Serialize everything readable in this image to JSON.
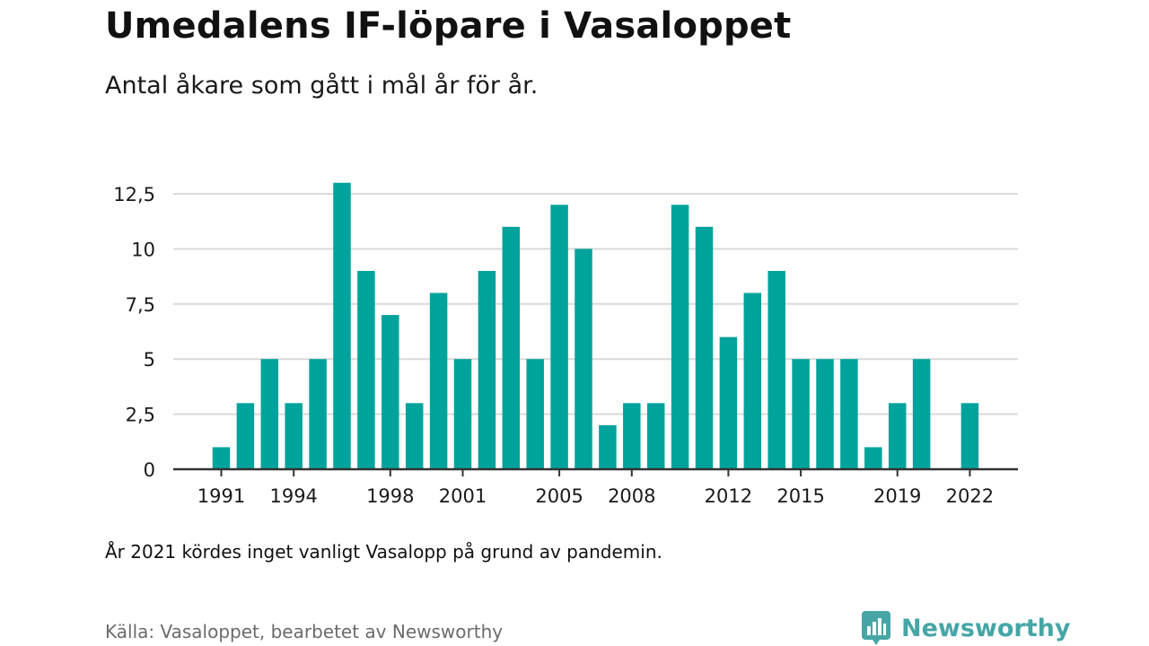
{
  "title": "Umedalens IF-löpare i Vasaloppet",
  "subtitle": "Antal åkare som gått i mål år för år.",
  "note": "År 2021 kördes inget vanligt Vasalopp på grund av pandemin.",
  "source": "Källa: Vasaloppet, bearbetet av Newsworthy",
  "brand": {
    "name": "Newsworthy",
    "icon": "newsworthy-logo-icon",
    "color": "#46a6a6"
  },
  "chart_data": {
    "type": "bar",
    "x": [
      1991,
      1992,
      1993,
      1994,
      1995,
      1996,
      1997,
      1998,
      1999,
      2000,
      2001,
      2002,
      2003,
      2004,
      2005,
      2006,
      2007,
      2008,
      2009,
      2010,
      2011,
      2012,
      2013,
      2014,
      2015,
      2016,
      2017,
      2018,
      2019,
      2020,
      2021,
      2022
    ],
    "values": [
      1,
      3,
      5,
      3,
      5,
      13,
      9,
      7,
      3,
      8,
      5,
      9,
      11,
      5,
      12,
      10,
      2,
      3,
      3,
      12,
      11,
      6,
      8,
      9,
      5,
      5,
      5,
      1,
      3,
      5,
      null,
      3
    ],
    "x_tick_labels": [
      "1991",
      "1994",
      "1998",
      "2001",
      "2005",
      "2008",
      "2012",
      "2015",
      "2019",
      "2022"
    ],
    "x_tick_values": [
      1991,
      1994,
      1998,
      2001,
      2005,
      2008,
      2012,
      2015,
      2019,
      2022
    ],
    "y_ticks": [
      0,
      2.5,
      5,
      7.5,
      10,
      12.5
    ],
    "y_tick_labels": [
      "0",
      "2,5",
      "5",
      "7,5",
      "10",
      "12,5"
    ],
    "ylim": [
      0,
      12.5
    ],
    "xlabel": "",
    "ylabel": "",
    "grid": true,
    "bar_color": "#00a39b",
    "grid_color": "#d9d9d9",
    "axis_color": "#333333"
  }
}
